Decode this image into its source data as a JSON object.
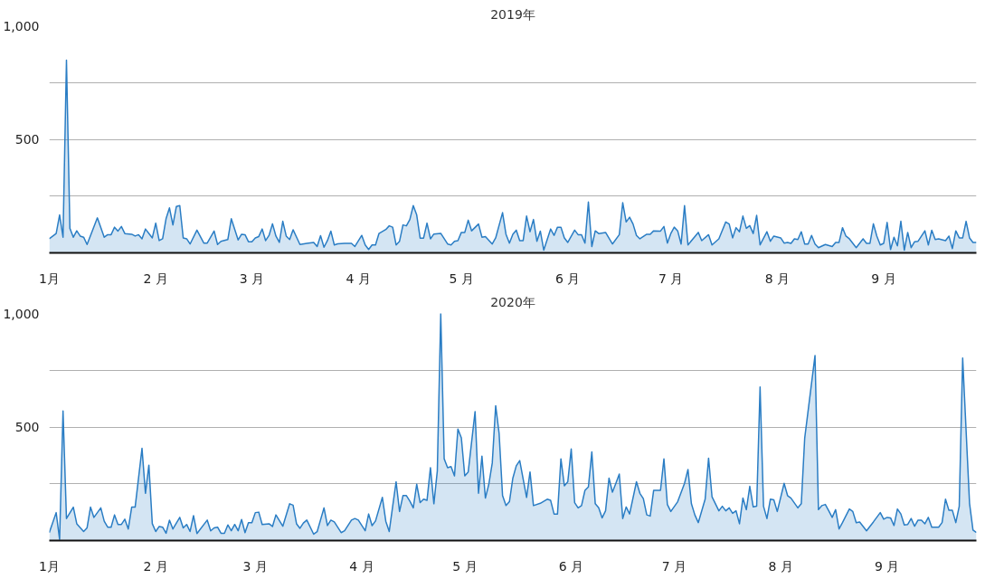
{
  "chart_data": [
    {
      "type": "area",
      "title": "2019年",
      "color": "#2a7dc4",
      "grid": "y",
      "xlim": [
        "2019-01-01",
        "2019-09-28"
      ],
      "xticks": [
        {
          "value": "2019-01-01",
          "label": "1月"
        },
        {
          "value": "2019-02-01",
          "label": "2 月"
        },
        {
          "value": "2019-03-01",
          "label": "3 月"
        },
        {
          "value": "2019-04-01",
          "label": "4 月"
        },
        {
          "value": "2019-05-01",
          "label": "5 月"
        },
        {
          "value": "2019-06-01",
          "label": "6 月"
        },
        {
          "value": "2019-07-01",
          "label": "7 月"
        },
        {
          "value": "2019-08-01",
          "label": "8 月"
        },
        {
          "value": "2019-09-01",
          "label": "9 月"
        }
      ],
      "ylim": [
        0,
        1000
      ],
      "yticks": [
        {
          "value": 0,
          "label": null
        },
        {
          "value": 250,
          "label": null
        },
        {
          "value": 500,
          "label": "500"
        },
        {
          "value": 750,
          "label": null
        },
        {
          "value": 1000,
          "label": "1,000"
        }
      ],
      "x": [
        "2019-01-01",
        "2019-01-03",
        "2019-01-04",
        "2019-01-05",
        "2019-01-06",
        "2019-01-07",
        "2019-01-08",
        "2019-01-09",
        "2019-01-10",
        "2019-01-11",
        "2019-01-12",
        "2019-01-15",
        "2019-01-17",
        "2019-01-18",
        "2019-01-19",
        "2019-01-20",
        "2019-01-21",
        "2019-01-22",
        "2019-01-23",
        "2019-01-25",
        "2019-01-26",
        "2019-01-27",
        "2019-01-28",
        "2019-01-29",
        "2019-01-31",
        "2019-02-01",
        "2019-02-02",
        "2019-02-03",
        "2019-02-04",
        "2019-02-05",
        "2019-02-06",
        "2019-02-07",
        "2019-02-08",
        "2019-02-09",
        "2019-02-10",
        "2019-02-11",
        "2019-02-13",
        "2019-02-15",
        "2019-02-16",
        "2019-02-18",
        "2019-02-19",
        "2019-02-20",
        "2019-02-22",
        "2019-02-23",
        "2019-02-25",
        "2019-02-26",
        "2019-02-27",
        "2019-02-28",
        "2019-03-01",
        "2019-03-02",
        "2019-03-03",
        "2019-03-04",
        "2019-03-05",
        "2019-03-06",
        "2019-03-07",
        "2019-03-08",
        "2019-03-09",
        "2019-03-10",
        "2019-03-11",
        "2019-03-12",
        "2019-03-13",
        "2019-03-15",
        "2019-03-17",
        "2019-03-19",
        "2019-03-20",
        "2019-03-21",
        "2019-03-22",
        "2019-03-23",
        "2019-03-24",
        "2019-03-25",
        "2019-03-26",
        "2019-03-28",
        "2019-03-30",
        "2019-03-31",
        "2019-04-02",
        "2019-04-03",
        "2019-04-04",
        "2019-04-05",
        "2019-04-06",
        "2019-04-07",
        "2019-04-09",
        "2019-04-10",
        "2019-04-11",
        "2019-04-12",
        "2019-04-13",
        "2019-04-14",
        "2019-04-15",
        "2019-04-16",
        "2019-04-17",
        "2019-04-18",
        "2019-04-19",
        "2019-04-20",
        "2019-04-21",
        "2019-04-22",
        "2019-04-23",
        "2019-04-25",
        "2019-04-27",
        "2019-04-28",
        "2019-04-29",
        "2019-04-30",
        "2019-05-01",
        "2019-05-02",
        "2019-05-03",
        "2019-05-04",
        "2019-05-06",
        "2019-05-07",
        "2019-05-08",
        "2019-05-10",
        "2019-05-11",
        "2019-05-13",
        "2019-05-14",
        "2019-05-15",
        "2019-05-16",
        "2019-05-17",
        "2019-05-18",
        "2019-05-19",
        "2019-05-20",
        "2019-05-21",
        "2019-05-22",
        "2019-05-23",
        "2019-05-24",
        "2019-05-25",
        "2019-05-27",
        "2019-05-28",
        "2019-05-29",
        "2019-05-30",
        "2019-05-31",
        "2019-06-01",
        "2019-06-03",
        "2019-06-04",
        "2019-06-05",
        "2019-06-06",
        "2019-06-07",
        "2019-06-08",
        "2019-06-09",
        "2019-06-10",
        "2019-06-12",
        "2019-06-14",
        "2019-06-16",
        "2019-06-17",
        "2019-06-18",
        "2019-06-19",
        "2019-06-20",
        "2019-06-21",
        "2019-06-22",
        "2019-06-24",
        "2019-06-25",
        "2019-06-26",
        "2019-06-28",
        "2019-06-29",
        "2019-06-30",
        "2019-07-01",
        "2019-07-02",
        "2019-07-03",
        "2019-07-04",
        "2019-07-05",
        "2019-07-06",
        "2019-07-09",
        "2019-07-10",
        "2019-07-12",
        "2019-07-13",
        "2019-07-15",
        "2019-07-17",
        "2019-07-18",
        "2019-07-19",
        "2019-07-20",
        "2019-07-21",
        "2019-07-22",
        "2019-07-23",
        "2019-07-24",
        "2019-07-25",
        "2019-07-26",
        "2019-07-27",
        "2019-07-29",
        "2019-07-30",
        "2019-07-31",
        "2019-08-02",
        "2019-08-03",
        "2019-08-04",
        "2019-08-05",
        "2019-08-06",
        "2019-08-07",
        "2019-08-08",
        "2019-08-09",
        "2019-08-10",
        "2019-08-11",
        "2019-08-12",
        "2019-08-13",
        "2019-08-15",
        "2019-08-17",
        "2019-08-18",
        "2019-08-19",
        "2019-08-20",
        "2019-08-21",
        "2019-08-22",
        "2019-08-24",
        "2019-08-26",
        "2019-08-27",
        "2019-08-28",
        "2019-08-29",
        "2019-08-30",
        "2019-08-31",
        "2019-09-01",
        "2019-09-02",
        "2019-09-03",
        "2019-09-04",
        "2019-09-05",
        "2019-09-06",
        "2019-09-07",
        "2019-09-08",
        "2019-09-09",
        "2019-09-10",
        "2019-09-11",
        "2019-09-13",
        "2019-09-14",
        "2019-09-15",
        "2019-09-16",
        "2019-09-17",
        "2019-09-19",
        "2019-09-20",
        "2019-09-21",
        "2019-09-22",
        "2019-09-23",
        "2019-09-24",
        "2019-09-25",
        "2019-09-26",
        "2019-09-27",
        "2019-09-28"
      ],
      "values": [
        62,
        85,
        167,
        69,
        849,
        108,
        69,
        97,
        74,
        69,
        37,
        154,
        69,
        80,
        80,
        113,
        96,
        116,
        85,
        82,
        74,
        80,
        62,
        105,
        66,
        131,
        54,
        62,
        150,
        198,
        123,
        204,
        208,
        66,
        62,
        39,
        100,
        43,
        43,
        96,
        37,
        51,
        59,
        150,
        57,
        82,
        80,
        49,
        49,
        66,
        72,
        105,
        54,
        77,
        128,
        74,
        46,
        139,
        74,
        59,
        102,
        37,
        42,
        46,
        28,
        76,
        25,
        54,
        96,
        35,
        40,
        42,
        42,
        28,
        77,
        35,
        15,
        35,
        35,
        85,
        103,
        119,
        113,
        35,
        51,
        123,
        119,
        147,
        208,
        167,
        65,
        65,
        131,
        62,
        83,
        86,
        39,
        35,
        51,
        54,
        90,
        90,
        144,
        97,
        127,
        69,
        72,
        39,
        66,
        177,
        82,
        43,
        82,
        100,
        54,
        54,
        162,
        93,
        147,
        51,
        96,
        12,
        105,
        77,
        113,
        113,
        66,
        46,
        100,
        80,
        80,
        43,
        224,
        28,
        97,
        85,
        90,
        39,
        80,
        221,
        136,
        157,
        127,
        77,
        62,
        82,
        82,
        97,
        96,
        116,
        43,
        85,
        113,
        97,
        39,
        208,
        35,
        90,
        54,
        80,
        35,
        62,
        136,
        127,
        66,
        111,
        93,
        162,
        108,
        120,
        85,
        165,
        35,
        93,
        51,
        74,
        66,
        43,
        46,
        42,
        62,
        59,
        93,
        39,
        39,
        77,
        39,
        23,
        37,
        28,
        46,
        46,
        111,
        74,
        62,
        23,
        62,
        42,
        42,
        128,
        74,
        35,
        42,
        134,
        15,
        69,
        31,
        139,
        12,
        90,
        23,
        49,
        51,
        97,
        35,
        100,
        59,
        62,
        54,
        74,
        19,
        97,
        66,
        66,
        139,
        66,
        46,
        46
      ]
    },
    {
      "type": "area",
      "title": "2020年",
      "color": "#2a7dc4",
      "grid": "y",
      "xlim": [
        "2020-01-01",
        "2020-09-27"
      ],
      "xticks": [
        {
          "value": "2020-01-01",
          "label": "1月"
        },
        {
          "value": "2020-02-01",
          "label": "2 月"
        },
        {
          "value": "2020-03-01",
          "label": "3 月"
        },
        {
          "value": "2020-04-01",
          "label": "4 月"
        },
        {
          "value": "2020-05-01",
          "label": "5 月"
        },
        {
          "value": "2020-06-01",
          "label": "6 月"
        },
        {
          "value": "2020-07-01",
          "label": "7 月"
        },
        {
          "value": "2020-08-01",
          "label": "8 月"
        },
        {
          "value": "2020-09-01",
          "label": "9 月"
        }
      ],
      "ylim": [
        0,
        1000
      ],
      "yticks": [
        {
          "value": 0,
          "label": null
        },
        {
          "value": 250,
          "label": null
        },
        {
          "value": 500,
          "label": "500"
        },
        {
          "value": 750,
          "label": null
        },
        {
          "value": 1000,
          "label": "1,000"
        }
      ],
      "x": [
        "2020-01-01",
        "2020-01-03",
        "2020-01-04",
        "2020-01-05",
        "2020-01-06",
        "2020-01-08",
        "2020-01-09",
        "2020-01-11",
        "2020-01-12",
        "2020-01-13",
        "2020-01-14",
        "2020-01-16",
        "2020-01-17",
        "2020-01-18",
        "2020-01-19",
        "2020-01-20",
        "2020-01-21",
        "2020-01-22",
        "2020-01-23",
        "2020-01-24",
        "2020-01-25",
        "2020-01-26",
        "2020-01-28",
        "2020-01-29",
        "2020-01-30",
        "2020-01-31",
        "2020-02-01",
        "2020-02-02",
        "2020-02-03",
        "2020-02-04",
        "2020-02-05",
        "2020-02-06",
        "2020-02-08",
        "2020-02-09",
        "2020-02-10",
        "2020-02-11",
        "2020-02-12",
        "2020-02-13",
        "2020-02-16",
        "2020-02-17",
        "2020-02-18",
        "2020-02-19",
        "2020-02-20",
        "2020-02-21",
        "2020-02-22",
        "2020-02-23",
        "2020-02-24",
        "2020-02-25",
        "2020-02-26",
        "2020-02-27",
        "2020-02-28",
        "2020-02-29",
        "2020-03-01",
        "2020-03-02",
        "2020-03-03",
        "2020-03-05",
        "2020-03-06",
        "2020-03-07",
        "2020-03-09",
        "2020-03-11",
        "2020-03-12",
        "2020-03-13",
        "2020-03-14",
        "2020-03-15",
        "2020-03-16",
        "2020-03-18",
        "2020-03-19",
        "2020-03-21",
        "2020-03-22",
        "2020-03-23",
        "2020-03-24",
        "2020-03-26",
        "2020-03-27",
        "2020-03-29",
        "2020-03-30",
        "2020-03-31",
        "2020-04-02",
        "2020-04-03",
        "2020-04-04",
        "2020-04-05",
        "2020-04-07",
        "2020-04-08",
        "2020-04-09",
        "2020-04-10",
        "2020-04-11",
        "2020-04-12",
        "2020-04-13",
        "2020-04-14",
        "2020-04-15",
        "2020-04-16",
        "2020-04-17",
        "2020-04-18",
        "2020-04-19",
        "2020-04-20",
        "2020-04-21",
        "2020-04-22",
        "2020-04-23",
        "2020-04-24",
        "2020-04-25",
        "2020-04-26",
        "2020-04-27",
        "2020-04-28",
        "2020-04-29",
        "2020-04-30",
        "2020-05-01",
        "2020-05-02",
        "2020-05-04",
        "2020-05-05",
        "2020-05-06",
        "2020-05-07",
        "2020-05-08",
        "2020-05-09",
        "2020-05-10",
        "2020-05-11",
        "2020-05-12",
        "2020-05-13",
        "2020-05-14",
        "2020-05-15",
        "2020-05-16",
        "2020-05-17",
        "2020-05-19",
        "2020-05-20",
        "2020-05-21",
        "2020-05-23",
        "2020-05-25",
        "2020-05-26",
        "2020-05-27",
        "2020-05-28",
        "2020-05-29",
        "2020-05-30",
        "2020-05-31",
        "2020-06-01",
        "2020-06-02",
        "2020-06-03",
        "2020-06-04",
        "2020-06-05",
        "2020-06-06",
        "2020-06-07",
        "2020-06-08",
        "2020-06-09",
        "2020-06-10",
        "2020-06-11",
        "2020-06-12",
        "2020-06-13",
        "2020-06-14",
        "2020-06-15",
        "2020-06-16",
        "2020-06-17",
        "2020-06-18",
        "2020-06-20",
        "2020-06-21",
        "2020-06-22",
        "2020-06-23",
        "2020-06-24",
        "2020-06-25",
        "2020-06-27",
        "2020-06-28",
        "2020-06-29",
        "2020-06-30",
        "2020-07-02",
        "2020-07-04",
        "2020-07-05",
        "2020-07-06",
        "2020-07-07",
        "2020-07-08",
        "2020-07-10",
        "2020-07-11",
        "2020-07-12",
        "2020-07-14",
        "2020-07-15",
        "2020-07-16",
        "2020-07-17",
        "2020-07-18",
        "2020-07-19",
        "2020-07-20",
        "2020-07-21",
        "2020-07-22",
        "2020-07-23",
        "2020-07-24",
        "2020-07-25",
        "2020-07-26",
        "2020-07-27",
        "2020-07-28",
        "2020-07-29",
        "2020-07-30",
        "2020-07-31",
        "2020-08-02",
        "2020-08-03",
        "2020-08-04",
        "2020-08-06",
        "2020-08-07",
        "2020-08-08",
        "2020-08-11",
        "2020-08-12",
        "2020-08-13",
        "2020-08-14",
        "2020-08-15",
        "2020-08-16",
        "2020-08-17",
        "2020-08-18",
        "2020-08-19",
        "2020-08-21",
        "2020-08-22",
        "2020-08-23",
        "2020-08-24",
        "2020-08-26",
        "2020-08-28",
        "2020-08-30",
        "2020-08-31",
        "2020-09-01",
        "2020-09-02",
        "2020-09-03",
        "2020-09-04",
        "2020-09-05",
        "2020-09-06",
        "2020-09-07",
        "2020-09-08",
        "2020-09-09",
        "2020-09-10",
        "2020-09-11",
        "2020-09-12",
        "2020-09-13",
        "2020-09-14",
        "2020-09-16",
        "2020-09-17",
        "2020-09-18",
        "2020-09-19",
        "2020-09-20",
        "2020-09-21",
        "2020-09-22",
        "2020-09-23",
        "2020-09-25",
        "2020-09-26",
        "2020-09-27"
      ],
      "values": [
        35,
        123,
        5,
        571,
        97,
        147,
        74,
        40,
        56,
        147,
        102,
        144,
        85,
        59,
        59,
        113,
        71,
        71,
        94,
        51,
        147,
        147,
        406,
        208,
        332,
        74,
        40,
        62,
        59,
        32,
        90,
        51,
        102,
        56,
        71,
        40,
        110,
        31,
        90,
        43,
        56,
        59,
        32,
        32,
        69,
        43,
        71,
        43,
        93,
        35,
        79,
        79,
        123,
        125,
        71,
        74,
        62,
        113,
        63,
        162,
        156,
        74,
        54,
        77,
        90,
        28,
        39,
        144,
        66,
        90,
        82,
        35,
        43,
        90,
        97,
        90,
        43,
        117,
        66,
        86,
        190,
        85,
        40,
        151,
        259,
        128,
        198,
        198,
        174,
        144,
        248,
        167,
        182,
        177,
        321,
        162,
        306,
        1000,
        360,
        321,
        326,
        285,
        491,
        452,
        285,
        302,
        568,
        208,
        372,
        187,
        248,
        341,
        594,
        471,
        198,
        154,
        171,
        275,
        329,
        352,
        190,
        302,
        154,
        164,
        182,
        177,
        117,
        117,
        360,
        241,
        259,
        403,
        167,
        144,
        154,
        221,
        236,
        390,
        162,
        144,
        100,
        131,
        275,
        213,
        252,
        293,
        97,
        148,
        117,
        259,
        208,
        185,
        113,
        108,
        221,
        221,
        360,
        159,
        128,
        171,
        252,
        313,
        162,
        113,
        79,
        182,
        363,
        193,
        131,
        151,
        131,
        144,
        120,
        131,
        74,
        187,
        136,
        239,
        148,
        151,
        676,
        151,
        97,
        182,
        179,
        128,
        252,
        198,
        187,
        144,
        162,
        452,
        815,
        136,
        154,
        159,
        131,
        102,
        136,
        51,
        79,
        139,
        128,
        79,
        82,
        43,
        82,
        123,
        94,
        102,
        100,
        66,
        139,
        117,
        69,
        71,
        97,
        63,
        90,
        90,
        74,
        102,
        59,
        59,
        79,
        182,
        133,
        133,
        79,
        151,
        804,
        164,
        46,
        35
      ]
    }
  ]
}
